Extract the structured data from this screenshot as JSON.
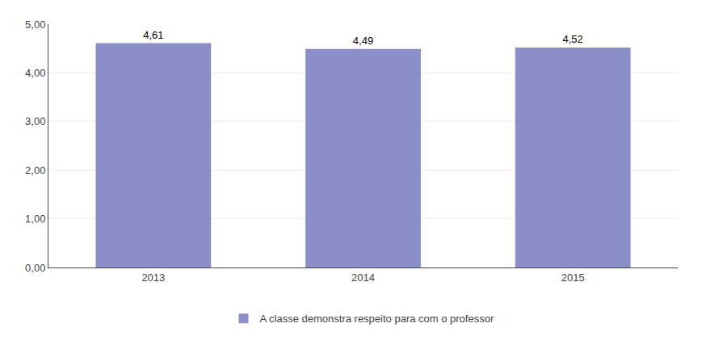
{
  "chart_data": {
    "type": "bar",
    "categories": [
      "2013",
      "2014",
      "2015"
    ],
    "series": [
      {
        "name": "A classe demonstra respeito para com o professor",
        "color": "#8B8FC8",
        "values": [
          4.61,
          4.49,
          4.52
        ],
        "value_labels": [
          "4,61",
          "4,49",
          "4,52"
        ]
      }
    ],
    "ylim": [
      0,
      5.0
    ],
    "yticks": [
      {
        "value": 0.0,
        "label": "0,00"
      },
      {
        "value": 1.0,
        "label": "1,00"
      },
      {
        "value": 2.0,
        "label": "2,00"
      },
      {
        "value": 3.0,
        "label": "3,00"
      },
      {
        "value": 4.0,
        "label": "4,00"
      },
      {
        "value": 5.0,
        "label": "5,00"
      }
    ],
    "grid": true,
    "data_labels": true,
    "legend": "bottom"
  }
}
